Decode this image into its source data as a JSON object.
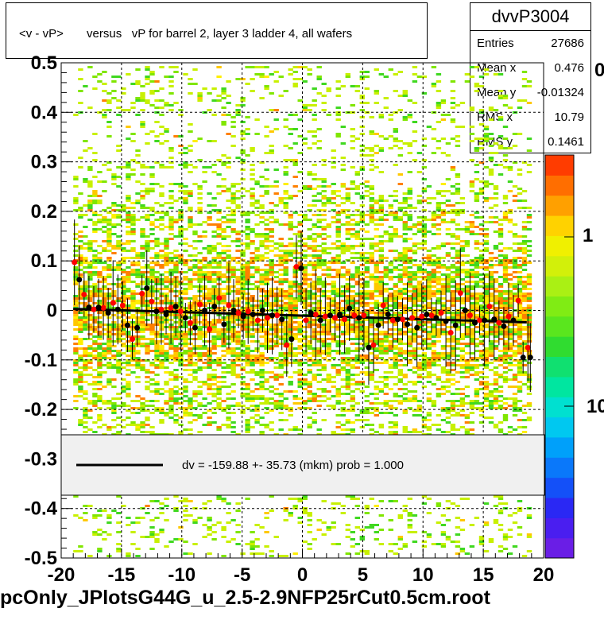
{
  "title": "<v - vP>       versus   vP for barrel 2, layer 3 ladder 4, all wafers",
  "stats": {
    "name": "dvvP3004",
    "rows": [
      {
        "key": "Entries",
        "value": "27686"
      },
      {
        "key": "Mean x",
        "value": "0.476"
      },
      {
        "key": "Mean y",
        "value": "-0.01324"
      },
      {
        "key": "RMS x",
        "value": "10.79"
      },
      {
        "key": "RMS y",
        "value": "0.1461"
      }
    ]
  },
  "legend": {
    "text": "dv = -159.88 +- 35.73 (mkm) prob = 1.000"
  },
  "palette_labels": [
    "0",
    "1",
    "10"
  ],
  "footer": "pcOnly_JPlotsG44G_u_2.5-2.9NFP25rCut0.5cm.root",
  "chart_data": {
    "type": "scatter",
    "title": "<v - vP>       versus   vP for barrel 2, layer 3 ladder 4, all wafers",
    "xlim": [
      -20,
      20
    ],
    "ylim": [
      -0.5,
      0.5
    ],
    "x_ticks": [
      "-20",
      "-15",
      "-10",
      "-5",
      "0",
      "5",
      "10",
      "15",
      "20"
    ],
    "y_ticks": [
      "-0.5",
      "-0.4",
      "-0.3",
      "-0.2",
      "-0.1",
      "0",
      "0.1",
      "0.2",
      "0.3",
      "0.4",
      "0.5"
    ],
    "grid": true,
    "histogram_x_range": [
      -19,
      19
    ],
    "fit_line": {
      "x": [
        -19,
        18.6
      ],
      "y": [
        0.003,
        -0.024
      ]
    },
    "series": [
      {
        "color": "#ff0000",
        "x": [
          -18.9,
          -18.1,
          -17.3,
          -16.5,
          -15.7,
          -14.9,
          -14.1,
          -13.3,
          -12.5,
          -11.7,
          -10.9,
          -10.1,
          -9.3,
          -8.5,
          -7.7,
          -6.9,
          -6.1,
          -5.3,
          -4.5,
          -3.7,
          -2.9,
          -2.1,
          -1.3,
          -0.5,
          0.3,
          1.1,
          1.9,
          2.7,
          3.5,
          4.3,
          5.1,
          5.9,
          6.7,
          7.5,
          8.3,
          9.1,
          9.9,
          10.7,
          11.5,
          12.3,
          13.1,
          13.9,
          14.7,
          15.5,
          16.3,
          17.1,
          17.9,
          18.7
        ],
        "y": [
          0.097,
          0.032,
          0.002,
          0.005,
          0.015,
          0.01,
          -0.058,
          0.034,
          0.018,
          0.002,
          0.005,
          -0.002,
          -0.025,
          0.012,
          -0.038,
          0.025,
          0.01,
          -0.005,
          -0.002,
          -0.02,
          -0.015,
          -0.01,
          -0.07,
          0.088,
          -0.02,
          -0.008,
          -0.012,
          -0.015,
          -0.018,
          -0.01,
          -0.01,
          -0.07,
          0.01,
          -0.02,
          -0.018,
          -0.015,
          -0.012,
          -0.01,
          -0.005,
          -0.045,
          0.035,
          -0.01,
          -0.02,
          0.008,
          -0.025,
          -0.012,
          0.02,
          -0.075
        ]
      },
      {
        "color": "#000000",
        "x": [
          -18.5,
          -17.7,
          -16.9,
          -16.1,
          -15.3,
          -14.5,
          -13.7,
          -12.9,
          -12.1,
          -11.3,
          -10.5,
          -9.7,
          -8.9,
          -8.1,
          -7.3,
          -6.5,
          -5.7,
          -4.9,
          -4.1,
          -3.3,
          -2.5,
          -1.7,
          -0.9,
          -0.1,
          0.7,
          1.5,
          2.3,
          3.1,
          3.9,
          4.7,
          5.5,
          6.3,
          7.1,
          7.9,
          8.7,
          9.5,
          10.3,
          11.1,
          11.9,
          12.7,
          13.5,
          14.3,
          15.1,
          15.9,
          16.7,
          17.5,
          18.3,
          18.9
        ],
        "y": [
          0.062,
          0.006,
          0.006,
          -0.005,
          0.002,
          -0.03,
          -0.035,
          0.045,
          -0.002,
          -0.008,
          0.008,
          -0.015,
          -0.035,
          0.0,
          0.008,
          -0.028,
          0.0,
          -0.012,
          -0.008,
          0.0,
          -0.01,
          -0.018,
          -0.058,
          0.085,
          -0.005,
          -0.02,
          -0.01,
          -0.008,
          0.004,
          -0.015,
          -0.075,
          -0.03,
          -0.008,
          -0.018,
          -0.028,
          -0.035,
          -0.008,
          -0.015,
          -0.022,
          -0.03,
          0.0,
          -0.025,
          -0.02,
          -0.018,
          -0.032,
          -0.02,
          -0.095,
          -0.095
        ]
      }
    ]
  }
}
